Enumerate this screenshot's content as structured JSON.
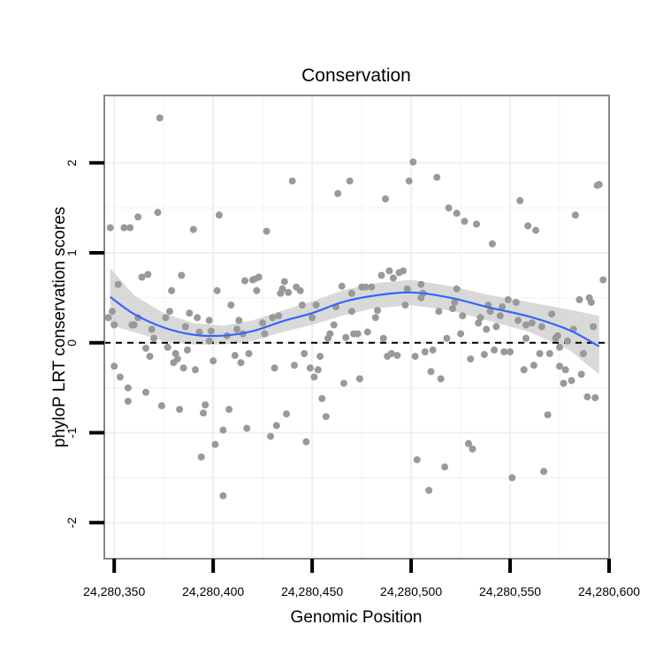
{
  "chart_data": {
    "type": "scatter",
    "title": "Conservation",
    "xlabel": "Genomic Position",
    "ylabel": "phyloP LRT conservation scores",
    "xlim": [
      24280345,
      24280600
    ],
    "ylim": [
      -2.4,
      2.75
    ],
    "x_ticks": [
      24280350,
      24280400,
      24280450,
      24280500,
      24280550,
      24280600
    ],
    "x_tick_labels": [
      "24,280,350",
      "24,280,400",
      "24,280,450",
      "24,280,500",
      "24,280,550",
      "24,280,600"
    ],
    "y_ticks": [
      -2,
      -1,
      0,
      1,
      2
    ],
    "y_tick_labels": [
      "-2",
      "-1",
      "0",
      "1",
      "2"
    ],
    "reference_line": {
      "y": 0,
      "style": "dashed"
    },
    "grid": true,
    "colors": {
      "points": "#999999",
      "smooth": "#3366ff",
      "band": "#cccccc",
      "panel_border": "#888888",
      "grid": "#f0f0f0"
    },
    "series": [
      {
        "name": "scores",
        "x": [
          24280347,
          24280348,
          24280349,
          24280350,
          24280352,
          24280353,
          24280355,
          24280357,
          24280358,
          24280360,
          24280362,
          24280364,
          24280366,
          24280367,
          24280369,
          24280370,
          24280372,
          24280374,
          24280376,
          24280377,
          24280379,
          24280381,
          24280382,
          24280383,
          24280385,
          24280386,
          24280387,
          24280390,
          24280392,
          24280393,
          24280395,
          24280396,
          24280398,
          24280399,
          24280400,
          24280402,
          24280403,
          24280405,
          24280407,
          24280409,
          24280411,
          24280412,
          24280414,
          24280416,
          24280418,
          24280420,
          24280421,
          24280423,
          24280425,
          24280427,
          24280429,
          24280430,
          24280432,
          24280434,
          24280435,
          24280437,
          24280438,
          24280440,
          24280442,
          24280444,
          24280446,
          24280447,
          24280449,
          24280451,
          24280453,
          24280455,
          24280457,
          24280459,
          24280461,
          24280463,
          24280465,
          24280467,
          24280469,
          24280471,
          24280473,
          24280475,
          24280477,
          24280480,
          24280483,
          24280485,
          24280487,
          24280489,
          24280491,
          24280493,
          24280496,
          24280498,
          24280499,
          24280501,
          24280503,
          24280505,
          24280507,
          24280509,
          24280511,
          24280513,
          24280515,
          24280517,
          24280519,
          24280521,
          24280523,
          24280525,
          24280527,
          24280529,
          24280531,
          24280533,
          24280535,
          24280537,
          24280539,
          24280541,
          24280543,
          24280545,
          24280547,
          24280549,
          24280551,
          24280553,
          24280555,
          24280557,
          24280559,
          24280561,
          24280563,
          24280565,
          24280567,
          24280569,
          24280571,
          24280573,
          24280575,
          24280577,
          24280579,
          24280581,
          24280583,
          24280585,
          24280587,
          24280589,
          24280591,
          24280593,
          24280595,
          24280597,
          24280357,
          24280359,
          24280366,
          24280368,
          24280373,
          24280378,
          24280384,
          24280388,
          24280391,
          24280394,
          24280401,
          24280405,
          24280408,
          24280413,
          24280417,
          24280422,
          24280426,
          24280431,
          24280436,
          24280441,
          24280445,
          24280450,
          24280454,
          24280458,
          24280462,
          24280466,
          24280470,
          24280474,
          24280478,
          24280482,
          24280486,
          24280490,
          24280494,
          24280497,
          24280502,
          24280506,
          24280510,
          24280514,
          24280518,
          24280522,
          24280526,
          24280530,
          24280534,
          24280538,
          24280542,
          24280546,
          24280550,
          24280554,
          24280558,
          24280562,
          24280566,
          24280570,
          24280574,
          24280578,
          24280582,
          24280586,
          24280590,
          24280594,
          24280350,
          24280362,
          24280380,
          24280398,
          24280415,
          24280433,
          24280452,
          24280470,
          24280488,
          24280505,
          24280523,
          24280540,
          24280558,
          24280575,
          24280592
        ],
        "y": [
          0.28,
          1.28,
          0.35,
          -0.26,
          0.65,
          -0.38,
          1.28,
          -0.5,
          1.28,
          0.2,
          1.4,
          0.73,
          -0.06,
          0.76,
          0.15,
          0.05,
          1.45,
          -0.7,
          0.28,
          -0.05,
          0.58,
          -0.12,
          -0.18,
          -0.74,
          -0.28,
          0.18,
          -0.08,
          1.26,
          0.28,
          0.12,
          -0.78,
          -0.69,
          0.02,
          0.13,
          -0.2,
          0.58,
          1.42,
          -0.97,
          0.08,
          0.42,
          -0.14,
          0.15,
          -0.22,
          0.69,
          -0.12,
          0.7,
          0.71,
          0.73,
          0.22,
          1.24,
          -1.04,
          0.28,
          -0.92,
          0.55,
          0.6,
          -0.79,
          0.56,
          1.8,
          0.62,
          0.58,
          -0.12,
          -1.1,
          -0.28,
          -0.38,
          -0.3,
          -0.62,
          -0.82,
          0.1,
          0.2,
          1.66,
          0.63,
          0.06,
          1.8,
          0.1,
          0.1,
          0.62,
          0.62,
          0.62,
          0.36,
          0.75,
          1.6,
          0.8,
          0.72,
          -0.14,
          0.8,
          0.6,
          1.8,
          2.01,
          -1.3,
          0.65,
          -0.1,
          -1.64,
          -0.08,
          1.84,
          -0.4,
          -1.38,
          1.5,
          0.38,
          1.44,
          0.1,
          1.35,
          -1.12,
          -1.18,
          1.32,
          0.28,
          -0.13,
          0.42,
          1.1,
          0.18,
          0.3,
          -0.1,
          0.48,
          -1.5,
          0.45,
          1.58,
          -0.3,
          1.3,
          0.22,
          1.25,
          -0.12,
          -1.43,
          -0.8,
          0.32,
          0.05,
          -0.26,
          -0.45,
          0.02,
          -0.42,
          1.42,
          0.48,
          -0.12,
          -0.6,
          0.45,
          -0.61,
          1.76,
          0.7,
          -0.65,
          0.2,
          -0.55,
          -0.15,
          2.5,
          0.35,
          0.75,
          0.33,
          -0.3,
          -1.27,
          -1.13,
          -1.7,
          -0.74,
          0.25,
          -0.95,
          0.58,
          0.1,
          -0.28,
          0.68,
          -0.25,
          0.42,
          0.28,
          -0.15,
          0.05,
          0.4,
          -0.45,
          0.35,
          -0.4,
          0.12,
          0.28,
          0.05,
          -0.12,
          0.78,
          0.42,
          -0.15,
          0.55,
          -0.32,
          0.35,
          0.05,
          0.45,
          0.3,
          -0.18,
          0.22,
          0.15,
          -0.08,
          0.4,
          -0.1,
          0.25,
          0.05,
          -0.25,
          0.18,
          -0.12,
          0.08,
          -0.3,
          0.15,
          -0.35,
          0.5,
          1.75,
          0.2,
          0.28,
          -0.22,
          0.25,
          0.1,
          0.3,
          0.42,
          0.55,
          -0.15,
          0.5,
          0.6,
          0.35,
          0.2,
          -0.05,
          0.18
        ]
      }
    ],
    "smooth_fit": {
      "method": "loess",
      "x": [
        24280348,
        24280360,
        24280375,
        24280390,
        24280405,
        24280420,
        24280435,
        24280450,
        24280465,
        24280480,
        24280500,
        24280520,
        24280540,
        24280560,
        24280580,
        24280595
      ],
      "y": [
        0.51,
        0.32,
        0.17,
        0.09,
        0.08,
        0.13,
        0.24,
        0.33,
        0.45,
        0.52,
        0.56,
        0.5,
        0.39,
        0.29,
        0.14,
        -0.04
      ],
      "lower": [
        0.2,
        0.12,
        0.02,
        -0.02,
        -0.02,
        0.02,
        0.12,
        0.2,
        0.3,
        0.38,
        0.42,
        0.36,
        0.24,
        0.12,
        -0.08,
        -0.35
      ],
      "upper": [
        0.83,
        0.53,
        0.33,
        0.22,
        0.19,
        0.25,
        0.36,
        0.46,
        0.58,
        0.66,
        0.7,
        0.63,
        0.53,
        0.45,
        0.37,
        0.3
      ]
    }
  }
}
